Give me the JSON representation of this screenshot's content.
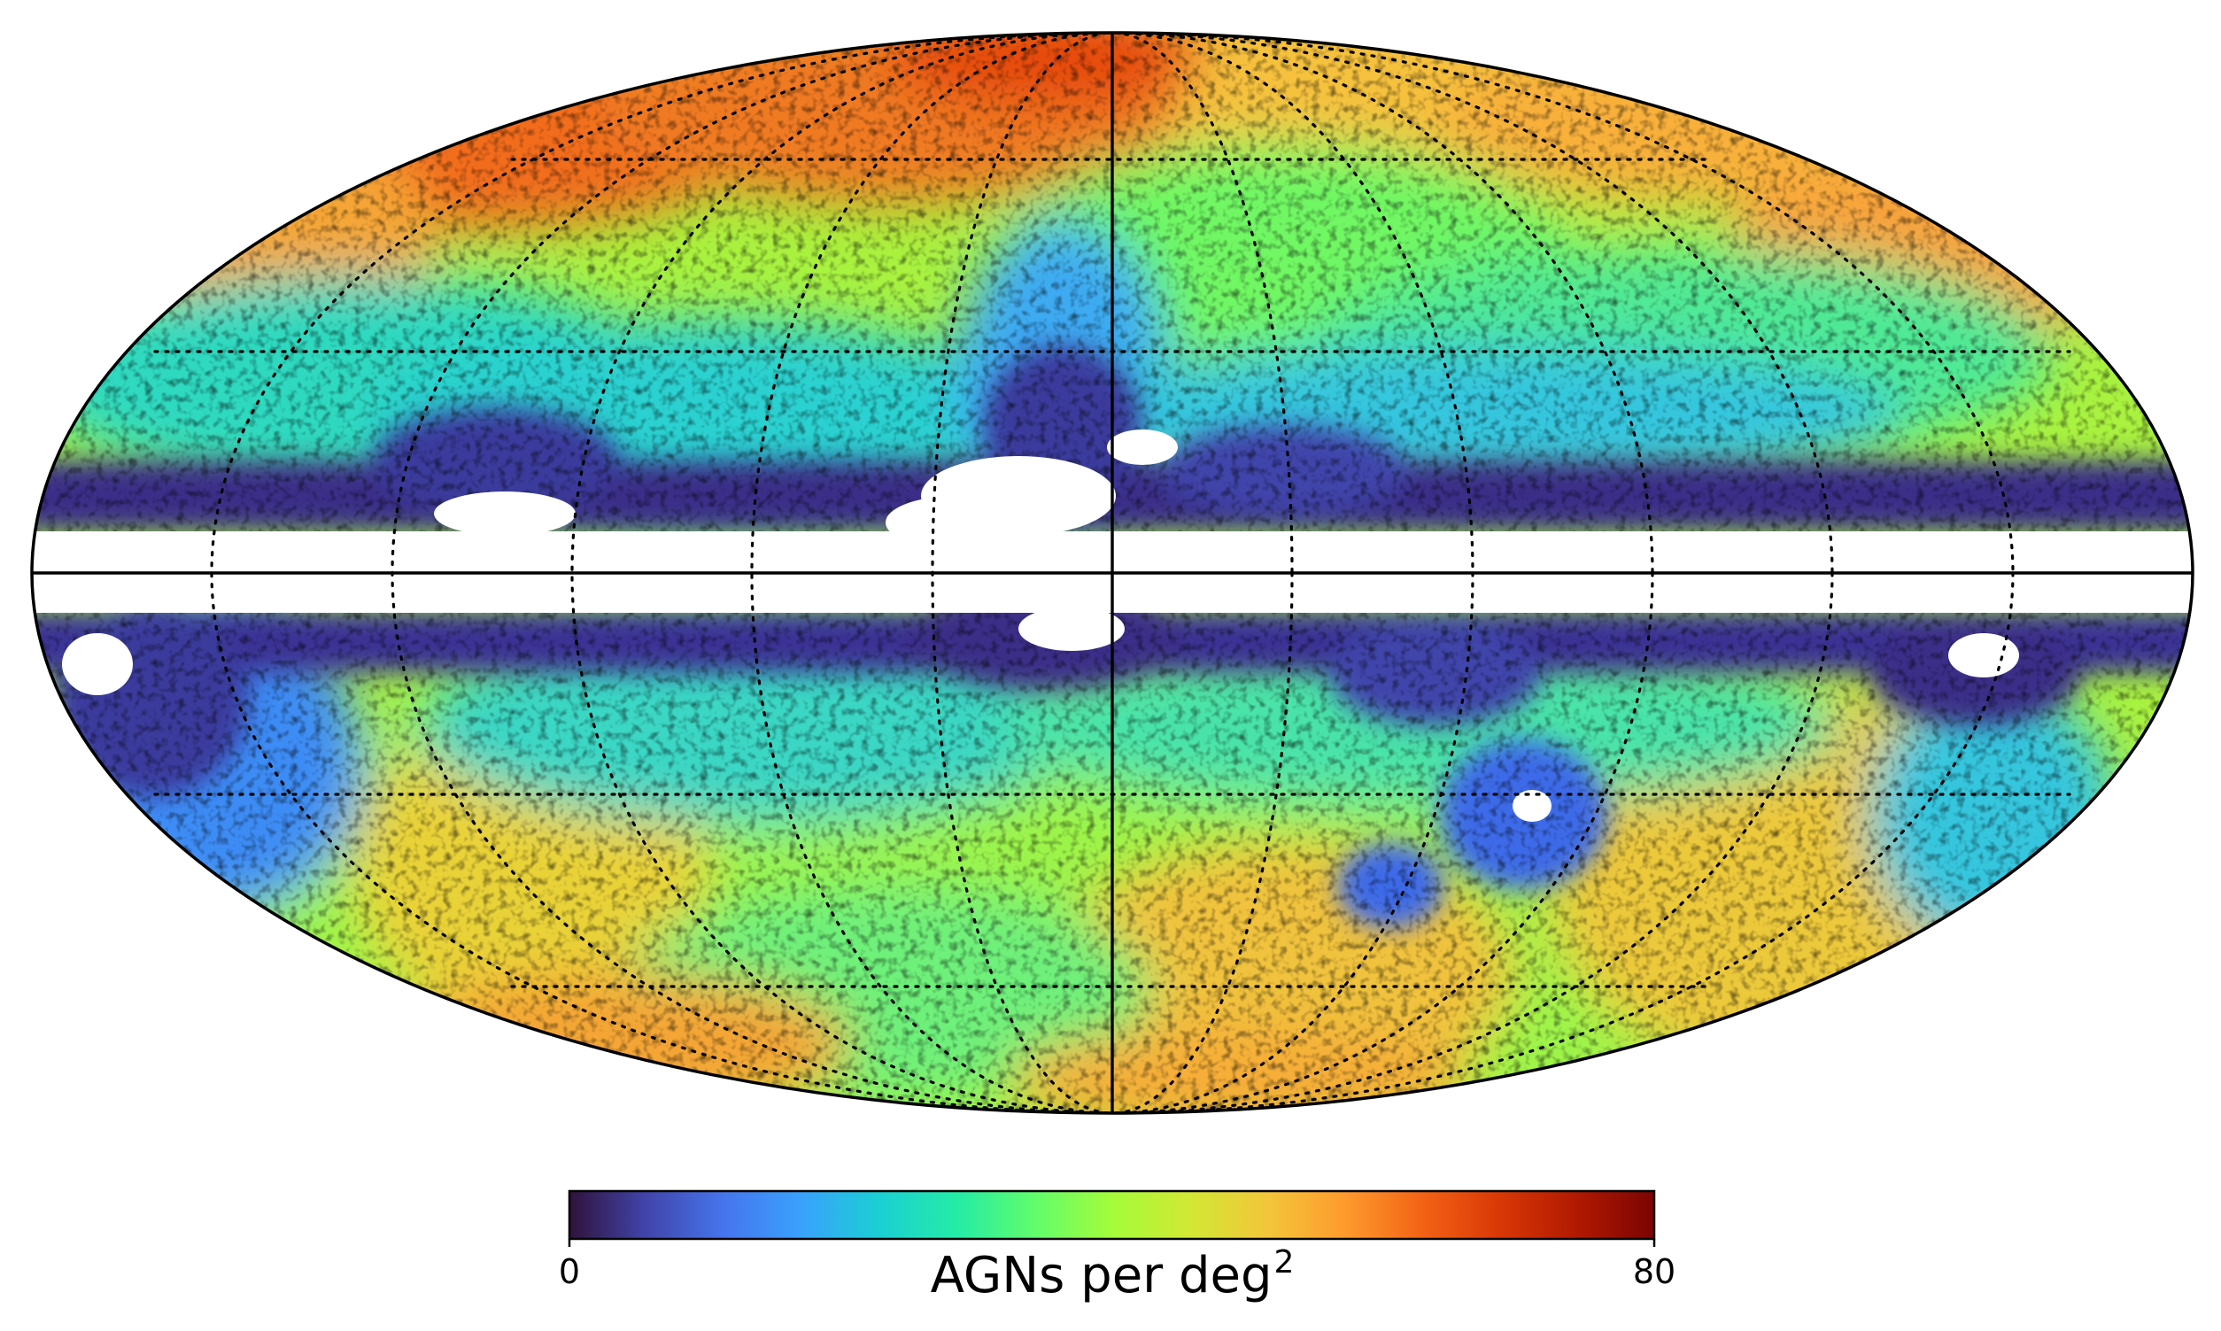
{
  "map": {
    "projection": "mollweide",
    "quantity": "AGN surface density",
    "graticule": "dotted, 30 deg meridians and parallels",
    "masked_region": "galactic plane, shown white",
    "regions_low_density": [
      "galactic plane band",
      "Magellanic Clouds"
    ],
    "regions_high_density": [
      "high latitude north",
      "high latitude south"
    ]
  },
  "colorbar": {
    "colormap": "turbo",
    "min_label": "0",
    "max_label": "80",
    "min": 0,
    "max": 80,
    "title": "AGNs per deg",
    "title_superscript": "2",
    "colors": [
      "#30123b",
      "#4145ab",
      "#4675ed",
      "#39a2fc",
      "#1bcfd4",
      "#24eca6",
      "#61fc6c",
      "#a4fc3b",
      "#d1e834",
      "#f3c63a",
      "#fe9b2d",
      "#f36315",
      "#d93806",
      "#b11901",
      "#7a0402"
    ]
  }
}
